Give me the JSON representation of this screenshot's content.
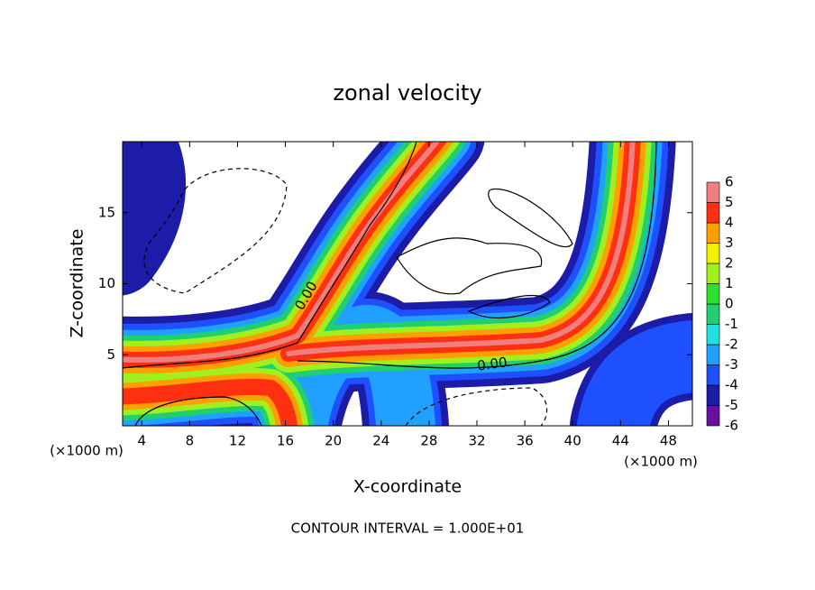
{
  "chart_data": {
    "type": "contour",
    "title": "zonal velocity",
    "x_label": "X-coordinate",
    "y_label": "Z-coordinate",
    "x_unit": "(×1000 m)",
    "y_unit": "(×1000 m)",
    "footer": "CONTOUR INTERVAL = 1.000E+01",
    "xlim": [
      2.4,
      50
    ],
    "ylim": [
      0,
      20
    ],
    "xticks": [
      4,
      8,
      12,
      16,
      20,
      24,
      28,
      32,
      36,
      40,
      44,
      48
    ],
    "yticks": [
      5,
      10,
      15
    ],
    "colorbar": {
      "levels": [
        -6,
        -5,
        -4,
        -3,
        -2,
        -1,
        0,
        1,
        2,
        3,
        4,
        5,
        6
      ],
      "colors": [
        "#6a0ea0",
        "#1c1ca8",
        "#1e50ff",
        "#20a0ff",
        "#20e0e0",
        "#20d070",
        "#30e030",
        "#a0f020",
        "#f0f000",
        "#ffa000",
        "#ff3010",
        "#f08080"
      ]
    },
    "contour_labels": [
      "0.00",
      "0.00"
    ]
  }
}
